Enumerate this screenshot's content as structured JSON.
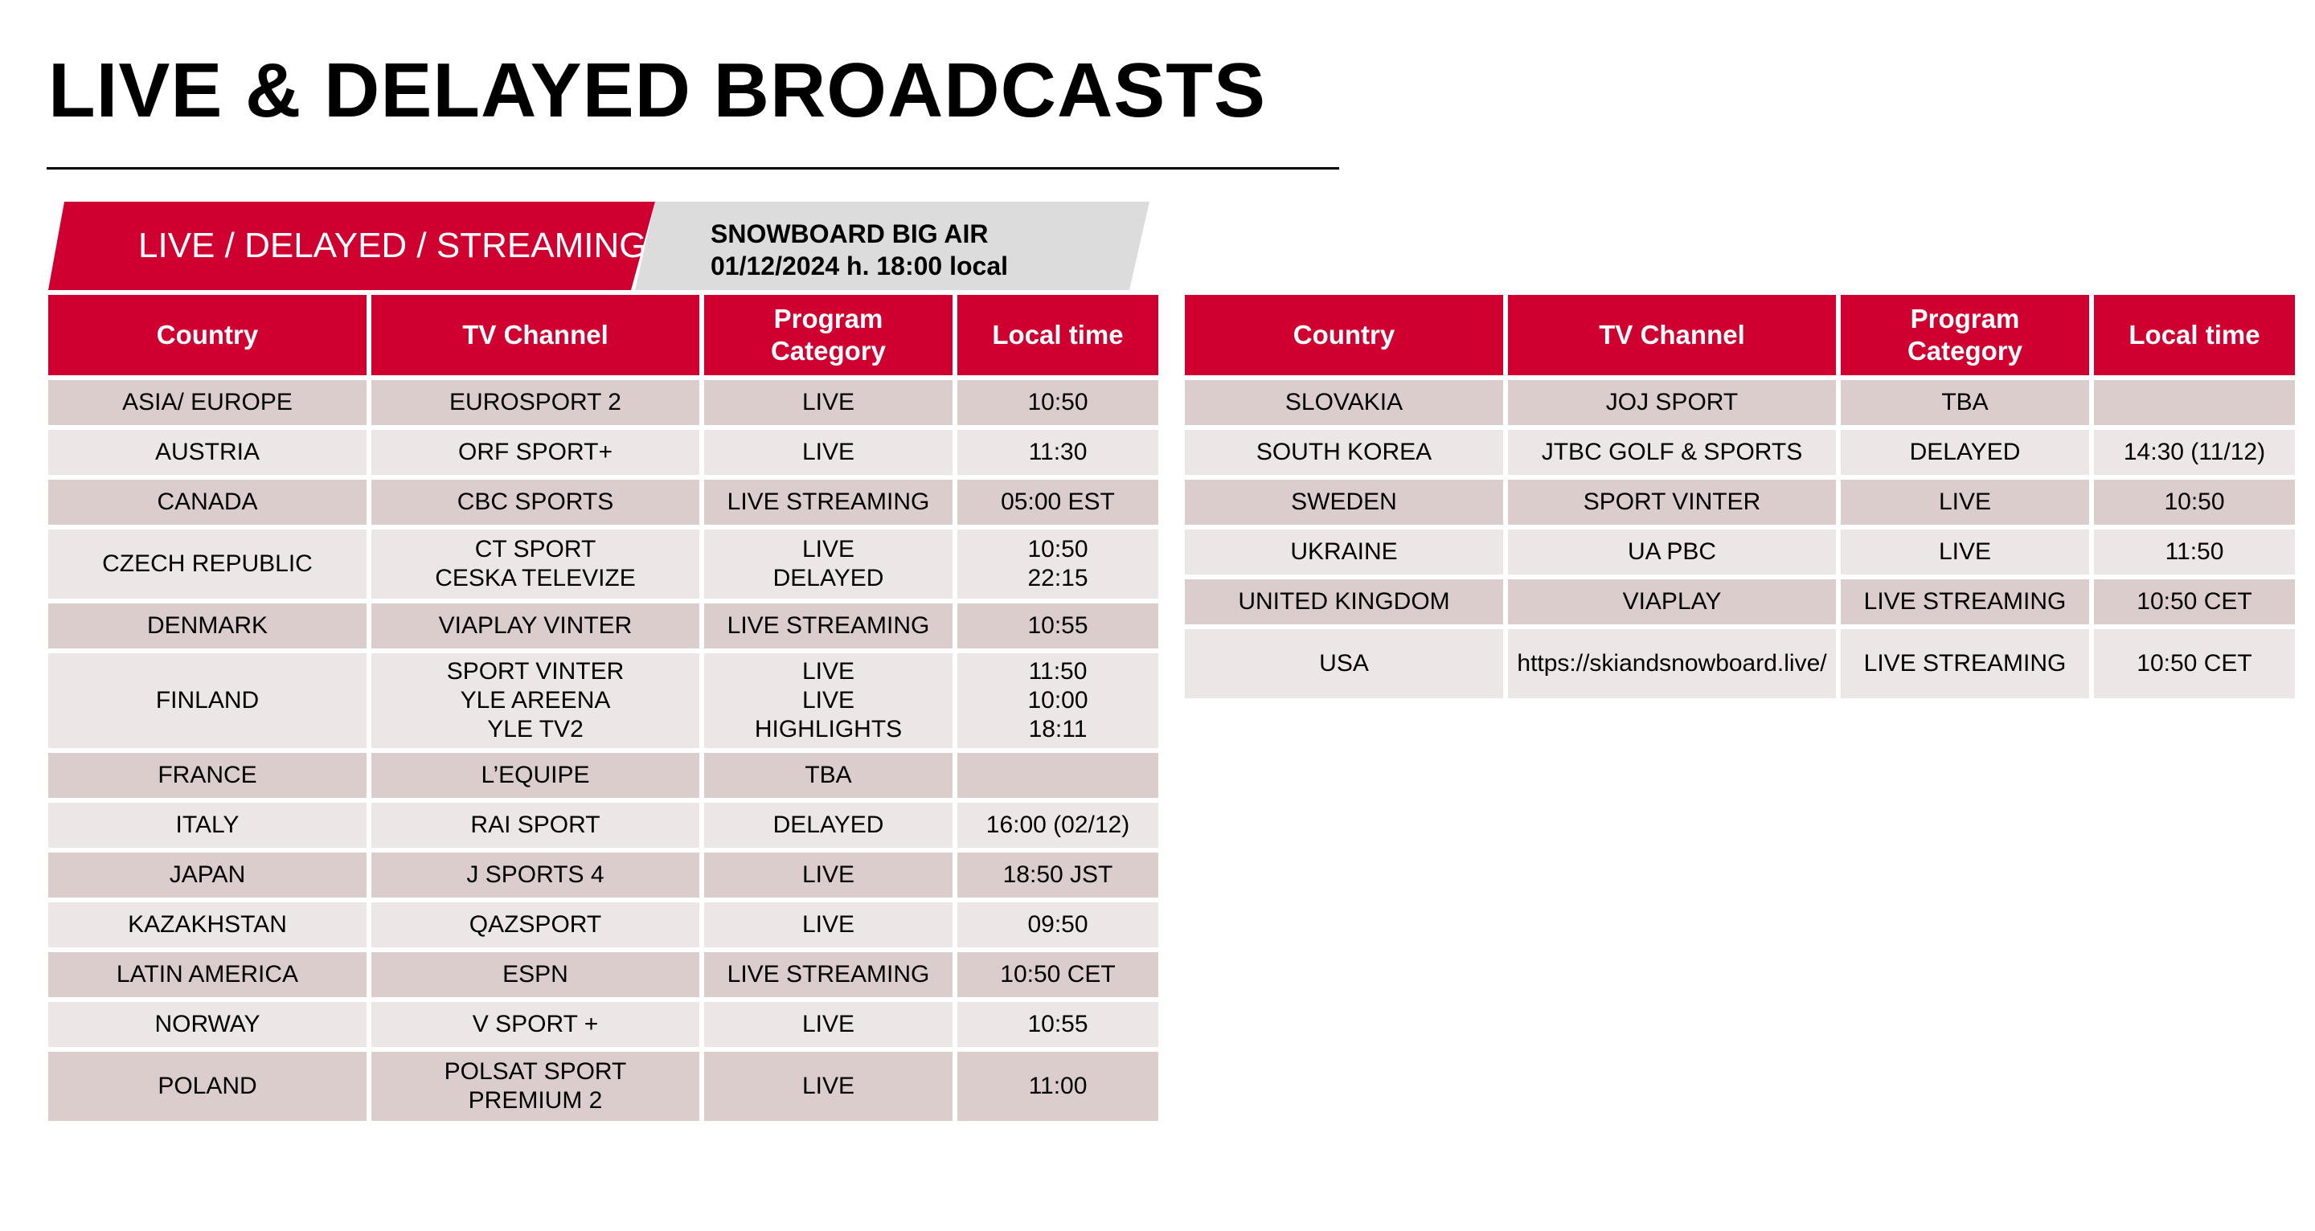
{
  "title": "LIVE & DELAYED BROADCASTS",
  "banner": {
    "label": "LIVE / DELAYED / STREAMING",
    "event_name": "SNOWBOARD BIG AIR",
    "event_datetime": "01/12/2024 h. 18:00 local"
  },
  "colors": {
    "accent": "#cf0030",
    "row_dark": "#dccdcd",
    "row_light": "#ede6e6",
    "banner_grey": "#dcdcdc"
  },
  "columns": [
    "Country",
    "TV Channel",
    "Program\nCategory",
    "Local time"
  ],
  "table_left": [
    {
      "country": "ASIA/ EUROPE",
      "channel": "EUROSPORT 2",
      "category": "LIVE",
      "time": "10:50"
    },
    {
      "country": "AUSTRIA",
      "channel": "ORF SPORT+",
      "category": "LIVE",
      "time": "11:30"
    },
    {
      "country": "CANADA",
      "channel": "CBC SPORTS",
      "category": "LIVE STREAMING",
      "time": "05:00 EST"
    },
    {
      "country": "CZECH REPUBLIC",
      "channel": "CT SPORT\nCESKA TELEVIZE",
      "category": "LIVE\nDELAYED",
      "time": "10:50\n22:15"
    },
    {
      "country": "DENMARK",
      "channel": "VIAPLAY VINTER",
      "category": "LIVE STREAMING",
      "time": "10:55"
    },
    {
      "country": "FINLAND",
      "channel": "SPORT VINTER\nYLE AREENA\nYLE TV2",
      "category": "LIVE\nLIVE\nHIGHLIGHTS",
      "time": "11:50\n10:00\n18:11"
    },
    {
      "country": "FRANCE",
      "channel": "L’EQUIPE",
      "category": "TBA",
      "time": ""
    },
    {
      "country": "ITALY",
      "channel": "RAI SPORT",
      "category": "DELAYED",
      "time": "16:00 (02/12)"
    },
    {
      "country": "JAPAN",
      "channel": "J SPORTS 4",
      "category": "LIVE",
      "time": "18:50 JST"
    },
    {
      "country": "KAZAKHSTAN",
      "channel": "QAZSPORT",
      "category": "LIVE",
      "time": "09:50"
    },
    {
      "country": "LATIN AMERICA",
      "channel": "ESPN",
      "category": "LIVE STREAMING",
      "time": "10:50 CET"
    },
    {
      "country": "NORWAY",
      "channel": "V SPORT +",
      "category": "LIVE",
      "time": "10:55"
    },
    {
      "country": "POLAND",
      "channel": "POLSAT SPORT\nPREMIUM 2",
      "category": "LIVE",
      "time": "11:00"
    }
  ],
  "table_right": [
    {
      "country": "SLOVAKIA",
      "channel": "JOJ SPORT",
      "category": "TBA",
      "time": ""
    },
    {
      "country": "SOUTH KOREA",
      "channel": "JTBC GOLF & SPORTS",
      "category": "DELAYED",
      "time": "14:30 (11/12)"
    },
    {
      "country": "SWEDEN",
      "channel": "SPORT VINTER",
      "category": "LIVE",
      "time": "10:50"
    },
    {
      "country": "UKRAINE",
      "channel": "UA PBC",
      "category": "LIVE",
      "time": "11:50"
    },
    {
      "country": "UNITED KINGDOM",
      "channel": "VIAPLAY",
      "category": "LIVE STREAMING",
      "time": "10:50 CET"
    },
    {
      "country": "USA",
      "channel": "https://skiandsnowboard.live/",
      "category": "LIVE STREAMING",
      "time": "10:50 CET"
    }
  ]
}
